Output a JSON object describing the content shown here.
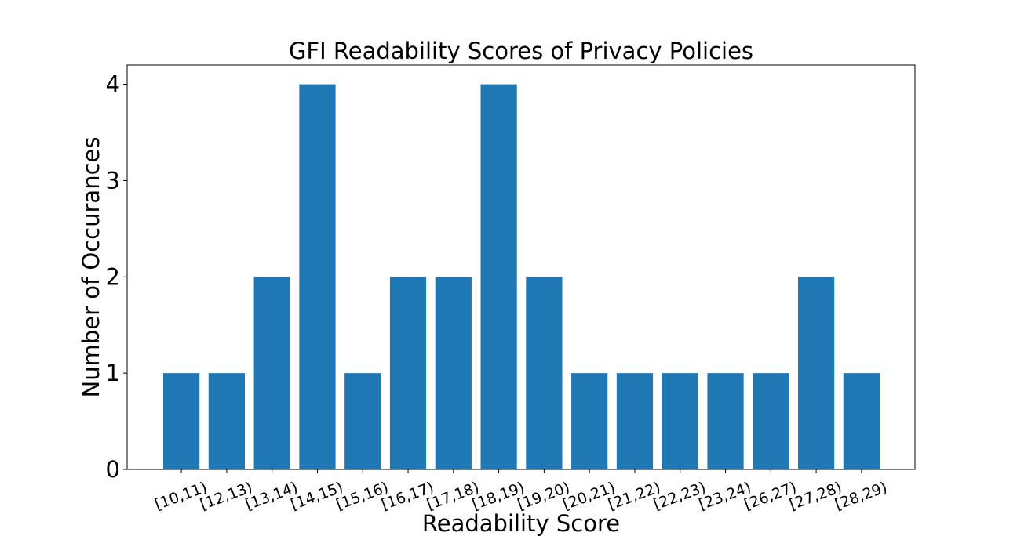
{
  "chart_data": {
    "type": "bar",
    "title": "GFI Readability Scores of Privacy Policies",
    "xlabel": "Readability Score",
    "ylabel": "Number of Occurances",
    "categories": [
      "[10,11)",
      "[12,13)",
      "[13,14)",
      "[14,15)",
      "[15,16)",
      "[16,17)",
      "[17,18)",
      "[18,19)",
      "[19,20)",
      "[20,21)",
      "[21,22)",
      "[22,23)",
      "[23,24)",
      "[26,27)",
      "[27,28)",
      "[28,29)"
    ],
    "values": [
      1,
      1,
      2,
      4,
      1,
      2,
      2,
      4,
      2,
      1,
      1,
      1,
      1,
      1,
      2,
      1
    ],
    "yticks": [
      0,
      1,
      2,
      3,
      4
    ],
    "ylim": [
      0,
      4.2
    ],
    "grid": false,
    "bar_color": "#1f77b4",
    "xtick_rotation": -20
  }
}
